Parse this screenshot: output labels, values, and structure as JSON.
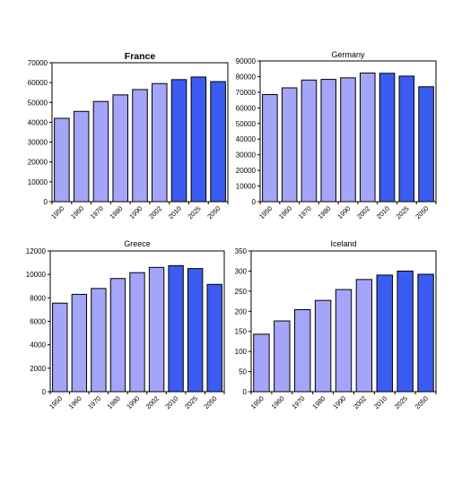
{
  "chart_data": [
    {
      "type": "bar",
      "title": "France",
      "categories": [
        "1950",
        "1960",
        "1970",
        "1980",
        "1990",
        "2002",
        "2010",
        "2025",
        "2050"
      ],
      "values": [
        42000,
        45500,
        50500,
        53800,
        56500,
        59500,
        61500,
        62800,
        60500
      ],
      "ylim": [
        0,
        70000
      ],
      "yticks": [
        "0",
        "10000",
        "20000",
        "30000",
        "40000",
        "50000",
        "60000",
        "70000"
      ],
      "grid": false,
      "colors": [
        "#a4a4f8",
        "#a4a4f8",
        "#a4a4f8",
        "#a4a4f8",
        "#a4a4f8",
        "#a4a4f8",
        "#3b5cf0",
        "#3b5cf0",
        "#3b5cf0"
      ]
    },
    {
      "type": "bar",
      "title": "Germany",
      "categories": [
        "1950",
        "1960",
        "1970",
        "1980",
        "1990",
        "2002",
        "2010",
        "2025",
        "2050"
      ],
      "values": [
        68500,
        72800,
        77800,
        78200,
        79200,
        82300,
        82100,
        80300,
        73500
      ],
      "ylim": [
        0,
        90000
      ],
      "yticks": [
        "0",
        "10000",
        "20000",
        "30000",
        "40000",
        "50000",
        "60000",
        "70000",
        "80000",
        "90000"
      ],
      "grid": false,
      "colors": [
        "#a4a4f8",
        "#a4a4f8",
        "#a4a4f8",
        "#a4a4f8",
        "#a4a4f8",
        "#a4a4f8",
        "#3b5cf0",
        "#3b5cf0",
        "#3b5cf0"
      ]
    },
    {
      "type": "bar",
      "title": "Greece",
      "categories": [
        "1950",
        "1960",
        "1970",
        "1980",
        "1990",
        "2002",
        "2010",
        "2025",
        "2050"
      ],
      "values": [
        7550,
        8300,
        8800,
        9650,
        10150,
        10600,
        10750,
        10500,
        9150
      ],
      "ylim": [
        0,
        12000
      ],
      "yticks": [
        "0",
        "2000",
        "4000",
        "6000",
        "8000",
        "10000",
        "12000"
      ],
      "grid": false,
      "colors": [
        "#a4a4f8",
        "#a4a4f8",
        "#a4a4f8",
        "#a4a4f8",
        "#a4a4f8",
        "#a4a4f8",
        "#3b5cf0",
        "#3b5cf0",
        "#3b5cf0"
      ]
    },
    {
      "type": "bar",
      "title": "Iceland",
      "categories": [
        "1950",
        "1960",
        "1970",
        "1980",
        "1990",
        "2002",
        "2010",
        "2025",
        "2050"
      ],
      "values": [
        143,
        176,
        204,
        227,
        254,
        279,
        290,
        300,
        292
      ],
      "ylim": [
        0,
        350
      ],
      "yticks": [
        "0",
        "50",
        "100",
        "150",
        "200",
        "250",
        "300",
        "350"
      ],
      "grid": false,
      "colors": [
        "#a4a4f8",
        "#a4a4f8",
        "#a4a4f8",
        "#a4a4f8",
        "#a4a4f8",
        "#a4a4f8",
        "#3b5cf0",
        "#3b5cf0",
        "#3b5cf0"
      ]
    }
  ]
}
